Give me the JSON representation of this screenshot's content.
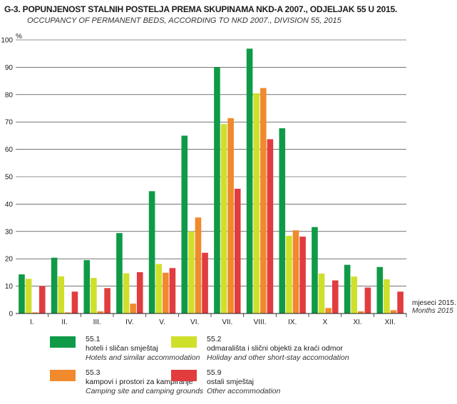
{
  "title": "G-3. POPUNJENOST STALNIH POSTELJA PREMA SKUPINAMA NKD-A 2007., ODJELJAK 55 U 2015.",
  "subtitle": "OCCUPANCY OF PERMANENT BEDS, ACCORDING TO NKD 2007., DIVISION 55, 2015",
  "chart_data": {
    "type": "bar",
    "ylabel": "%",
    "xlabel": "mjeseci 2015.",
    "xlabel_en": "Months 2015",
    "ylim": [
      0,
      100
    ],
    "yticks": [
      0,
      10,
      20,
      30,
      40,
      50,
      60,
      70,
      80,
      90,
      100
    ],
    "categories": [
      "I.",
      "II.",
      "III.",
      "IV.",
      "V.",
      "VI.",
      "VII.",
      "VIII.",
      "IX.",
      "X",
      "XI.",
      "XII."
    ],
    "series": [
      {
        "name": "55.1",
        "label": "hoteli i sličan smještaj",
        "label_en": "Hotels and similar accommodation",
        "color": "#0f9a48",
        "values": [
          14.3,
          20.4,
          19.5,
          29.4,
          44.7,
          65.0,
          90.0,
          96.8,
          67.7,
          31.6,
          17.8,
          17.0
        ]
      },
      {
        "name": "55.2",
        "label": "odmarališta i slični objekti za kraći odmor",
        "label_en": "Holiday and other short-stay accomodation",
        "color": "#cfe02b",
        "values": [
          12.7,
          13.6,
          13.0,
          14.7,
          18.1,
          30.0,
          69.2,
          80.5,
          28.4,
          14.6,
          13.5,
          12.5
        ]
      },
      {
        "name": "55.3",
        "label": "kampovi i prostori za kampiranje",
        "label_en": "Camping site and camping grounds",
        "color": "#f08a2c",
        "values": [
          0.4,
          0.4,
          0.8,
          3.6,
          14.9,
          35.1,
          71.4,
          82.4,
          30.4,
          2.0,
          0.8,
          1.2
        ]
      },
      {
        "name": "55.9",
        "label": "ostali smještaj",
        "label_en": "Other accommodation",
        "color": "#e23c3f",
        "values": [
          10.0,
          8.0,
          9.3,
          15.1,
          16.6,
          22.2,
          45.6,
          63.7,
          28.1,
          12.1,
          9.5,
          8.0
        ]
      }
    ]
  }
}
